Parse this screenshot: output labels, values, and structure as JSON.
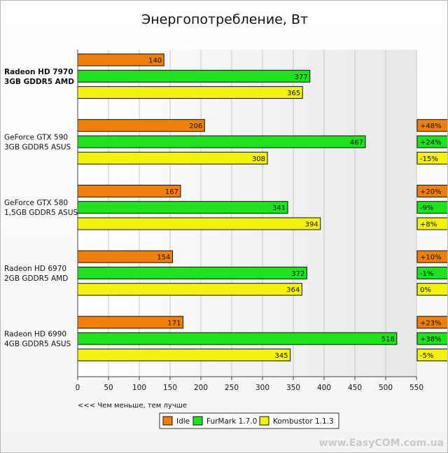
{
  "chart_data": {
    "type": "bar",
    "orientation": "horizontal",
    "title": "Энергопотребление, Вт",
    "note": "<<< Чем меньше, тем лучше",
    "categories": [
      [
        "Radeon HD 7970",
        "3GB GDDR5 AMD"
      ],
      [
        "GeForce GTX 590",
        "3GB GDDR5 ASUS"
      ],
      [
        "GeForce GTX 580",
        "1,5GB GDDR5 ASUS"
      ],
      [
        "Radeon HD 6970",
        "2GB GDDR5 AMD"
      ],
      [
        "Radeon HD 6990",
        "4GB GDDR5 ASUS"
      ]
    ],
    "highlight_category": 0,
    "series": [
      {
        "name": "Idle",
        "color": "#f07f0a",
        "values": [
          140,
          206,
          167,
          154,
          171
        ],
        "deltas": [
          "",
          "+48%",
          "+20%",
          "+10%",
          "+23%"
        ]
      },
      {
        "name": "FurMark 1.7.0",
        "color": "#1ee21e",
        "values": [
          377,
          467,
          341,
          372,
          518
        ],
        "deltas": [
          "",
          "+24%",
          "-9%",
          "-1%",
          "+38%"
        ]
      },
      {
        "name": "Kombustor 1.1.3",
        "color": "#f2f20c",
        "values": [
          365,
          308,
          394,
          364,
          345
        ],
        "deltas": [
          "",
          "-15%",
          "+8%",
          "0%",
          "-5%"
        ]
      }
    ],
    "xlim": [
      0,
      550
    ],
    "xticks": [
      "0",
      "50",
      "100",
      "150",
      "200",
      "250",
      "300",
      "350",
      "400",
      "450",
      "500",
      "550"
    ],
    "grid": true,
    "legend_position": "bottom-center"
  },
  "watermark": "www.EasyCOM.com.ua"
}
